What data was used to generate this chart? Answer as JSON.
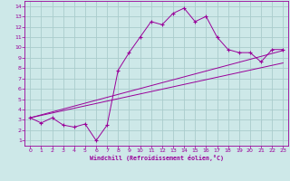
{
  "xlabel": "Windchill (Refroidissement éolien,°C)",
  "background_color": "#cde8e8",
  "grid_color": "#aacccc",
  "line_color": "#990099",
  "axis_color": "#990099",
  "xlim": [
    -0.5,
    23.5
  ],
  "ylim": [
    0.5,
    14.5
  ],
  "xticks": [
    0,
    1,
    2,
    3,
    4,
    5,
    6,
    7,
    8,
    9,
    10,
    11,
    12,
    13,
    14,
    15,
    16,
    17,
    18,
    19,
    20,
    21,
    22,
    23
  ],
  "yticks": [
    1,
    2,
    3,
    4,
    5,
    6,
    7,
    8,
    9,
    10,
    11,
    12,
    13,
    14
  ],
  "line1_x": [
    0,
    1,
    2,
    3,
    4,
    5,
    6,
    7,
    8,
    9,
    10,
    11,
    12,
    13,
    14,
    15,
    16,
    17,
    18,
    19,
    20,
    21,
    22,
    23
  ],
  "line1_y": [
    3.2,
    2.7,
    3.2,
    2.5,
    2.3,
    2.6,
    1.0,
    2.5,
    7.8,
    9.5,
    11.0,
    12.5,
    12.2,
    13.3,
    13.8,
    12.5,
    13.0,
    11.0,
    9.8,
    9.5,
    9.5,
    8.6,
    9.8,
    9.8
  ],
  "line2_x": [
    0,
    23
  ],
  "line2_y": [
    3.2,
    8.5
  ],
  "line3_x": [
    0,
    23
  ],
  "line3_y": [
    3.2,
    9.7
  ]
}
